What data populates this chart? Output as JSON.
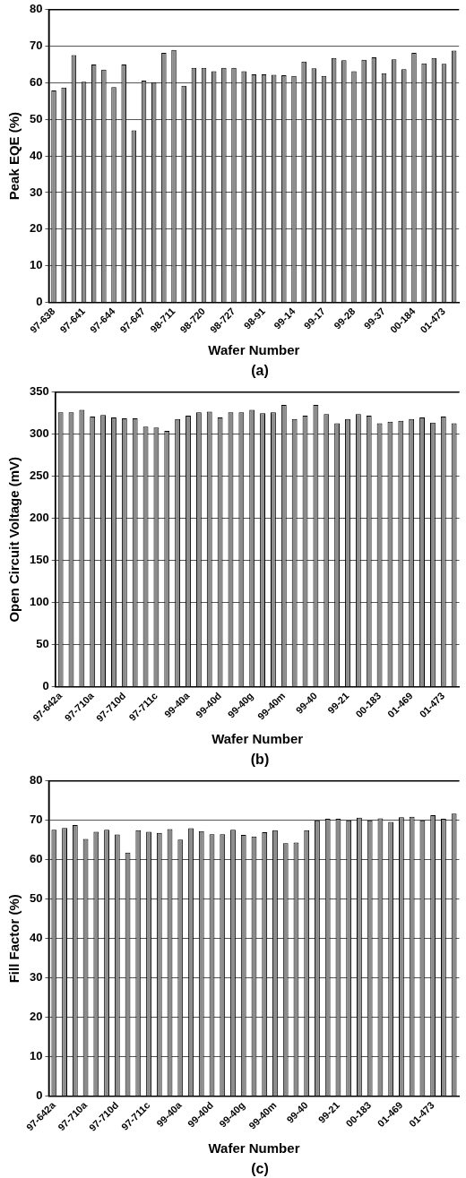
{
  "chart_data": [
    {
      "type": "bar",
      "xlabel": "Wafer Number",
      "ylabel": "Peak EQE (%)",
      "annotations": [
        "(a)"
      ],
      "color": "#8c8c8c",
      "grid": "y",
      "ylim": [
        0,
        80
      ],
      "yticks": [
        0,
        10,
        20,
        30,
        40,
        50,
        60,
        70,
        80
      ],
      "categories": [
        "97-638",
        null,
        null,
        "97-641",
        null,
        null,
        "97-644",
        null,
        null,
        "97-647",
        null,
        null,
        "98-711",
        null,
        null,
        "98-720",
        null,
        null,
        "98-727",
        null,
        null,
        "98-91",
        null,
        null,
        "99-14",
        null,
        null,
        "99-17",
        null,
        null,
        "99-28",
        null,
        null,
        "99-37",
        null,
        null,
        "00-184",
        null,
        null,
        "01-473",
        null
      ],
      "values": [
        57.9,
        58.7,
        67.6,
        60.3,
        65,
        63.6,
        58.8,
        65,
        47,
        60.6,
        60.2,
        68.2,
        69,
        59.2,
        64.1,
        64.1,
        63.2,
        64.1,
        64.1,
        63.2,
        62.3,
        62.3,
        62.2,
        62.1,
        61.9,
        65.8,
        64,
        61.9,
        66.8,
        66.2,
        63.2,
        66.3,
        67,
        62.6,
        66.4,
        63.7,
        68.2,
        65.3,
        66.8,
        65.2,
        68.8
      ]
    },
    {
      "type": "bar",
      "xlabel": "Wafer Number",
      "ylabel": "Open Circuit Voltage (mV)",
      "annotations": [
        "(b)"
      ],
      "color": "#8c8c8c",
      "grid": "y",
      "ylim": [
        0,
        350
      ],
      "yticks": [
        0,
        50,
        100,
        150,
        200,
        250,
        300,
        350
      ],
      "categories": [
        "97-642a",
        null,
        null,
        "97-710a",
        null,
        null,
        "97-710d",
        null,
        null,
        "97-711c",
        null,
        null,
        "99-40a",
        null,
        null,
        "99-40d",
        null,
        null,
        "99-40g",
        null,
        null,
        "99-40m",
        null,
        null,
        "99-40",
        null,
        null,
        "99-21",
        null,
        null,
        "00-183",
        null,
        null,
        "01-469",
        null,
        null,
        "01-473",
        null
      ],
      "values": [
        326,
        326,
        329,
        321,
        323,
        320,
        319,
        319,
        309,
        308,
        304,
        318,
        322,
        326,
        327,
        320,
        326,
        326,
        329,
        325,
        326,
        335,
        318,
        322,
        335,
        324,
        313,
        318,
        324,
        322,
        313,
        315,
        316,
        318,
        320,
        314,
        321,
        313
      ]
    },
    {
      "type": "bar",
      "xlabel": "Wafer Number",
      "ylabel": "Fill Factor (%)",
      "annotations": [
        "(c)"
      ],
      "color": "#8c8c8c",
      "grid": "y",
      "ylim": [
        0,
        80
      ],
      "yticks": [
        0,
        10,
        20,
        30,
        40,
        50,
        60,
        70,
        80
      ],
      "categories": [
        "97-642a",
        null,
        null,
        "97-710a",
        null,
        null,
        "97-710d",
        null,
        null,
        "97-711c",
        null,
        null,
        "99-40a",
        null,
        null,
        "99-40d",
        null,
        null,
        "99-40g",
        null,
        null,
        "99-40m",
        null,
        null,
        "99-40",
        null,
        null,
        "99-21",
        null,
        null,
        "00-183",
        null,
        null,
        "01-469",
        null,
        null,
        "01-473",
        null,
        null
      ],
      "values": [
        67.6,
        68.1,
        68.8,
        65.3,
        67.1,
        67.6,
        66.4,
        61.8,
        67.5,
        67.1,
        66.8,
        67.8,
        65.1,
        68,
        67.3,
        66.5,
        66.5,
        67.6,
        66.3,
        65.9,
        67,
        67.5,
        64.2,
        64.4,
        67.5,
        70,
        70.4,
        70.4,
        70,
        70.7,
        70,
        70.5,
        69.6,
        70.8,
        70.9,
        70,
        71.3,
        70.4,
        71.7
      ]
    }
  ]
}
